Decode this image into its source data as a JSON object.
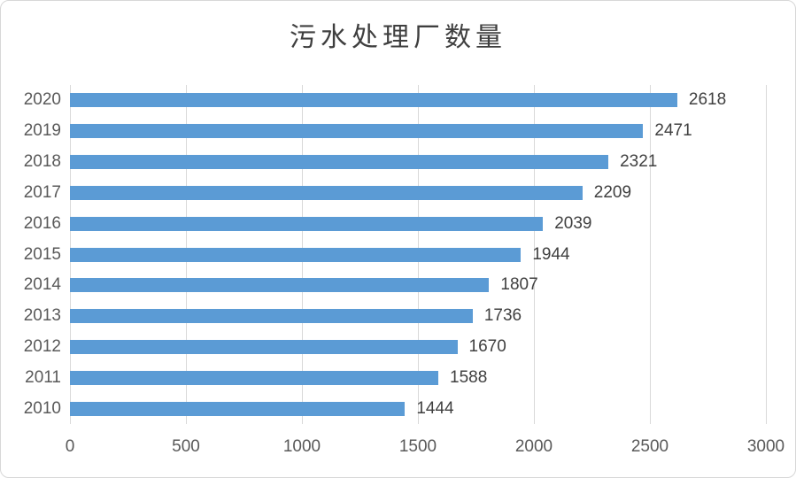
{
  "chart_data": {
    "type": "bar",
    "orientation": "horizontal",
    "title": "污水处理厂数量",
    "categories": [
      "2020",
      "2019",
      "2018",
      "2017",
      "2016",
      "2015",
      "2014",
      "2013",
      "2012",
      "2011",
      "2010"
    ],
    "values": [
      2618,
      2471,
      2321,
      2209,
      2039,
      1944,
      1807,
      1736,
      1670,
      1588,
      1444
    ],
    "xlabel": "",
    "ylabel": "",
    "xlim": [
      0,
      3000
    ],
    "x_ticks": [
      0,
      500,
      1000,
      1500,
      2000,
      2500,
      3000
    ],
    "grid": "vertical-only",
    "legend": "none",
    "data_labels": true,
    "colors": {
      "bar": "#5b9bd5",
      "gridline": "#d9d9d9",
      "axis_label": "#595959",
      "value_label": "#404040",
      "title": "#3f3f3f",
      "frame_border": "#d7d7d7",
      "background": "#ffffff"
    }
  }
}
